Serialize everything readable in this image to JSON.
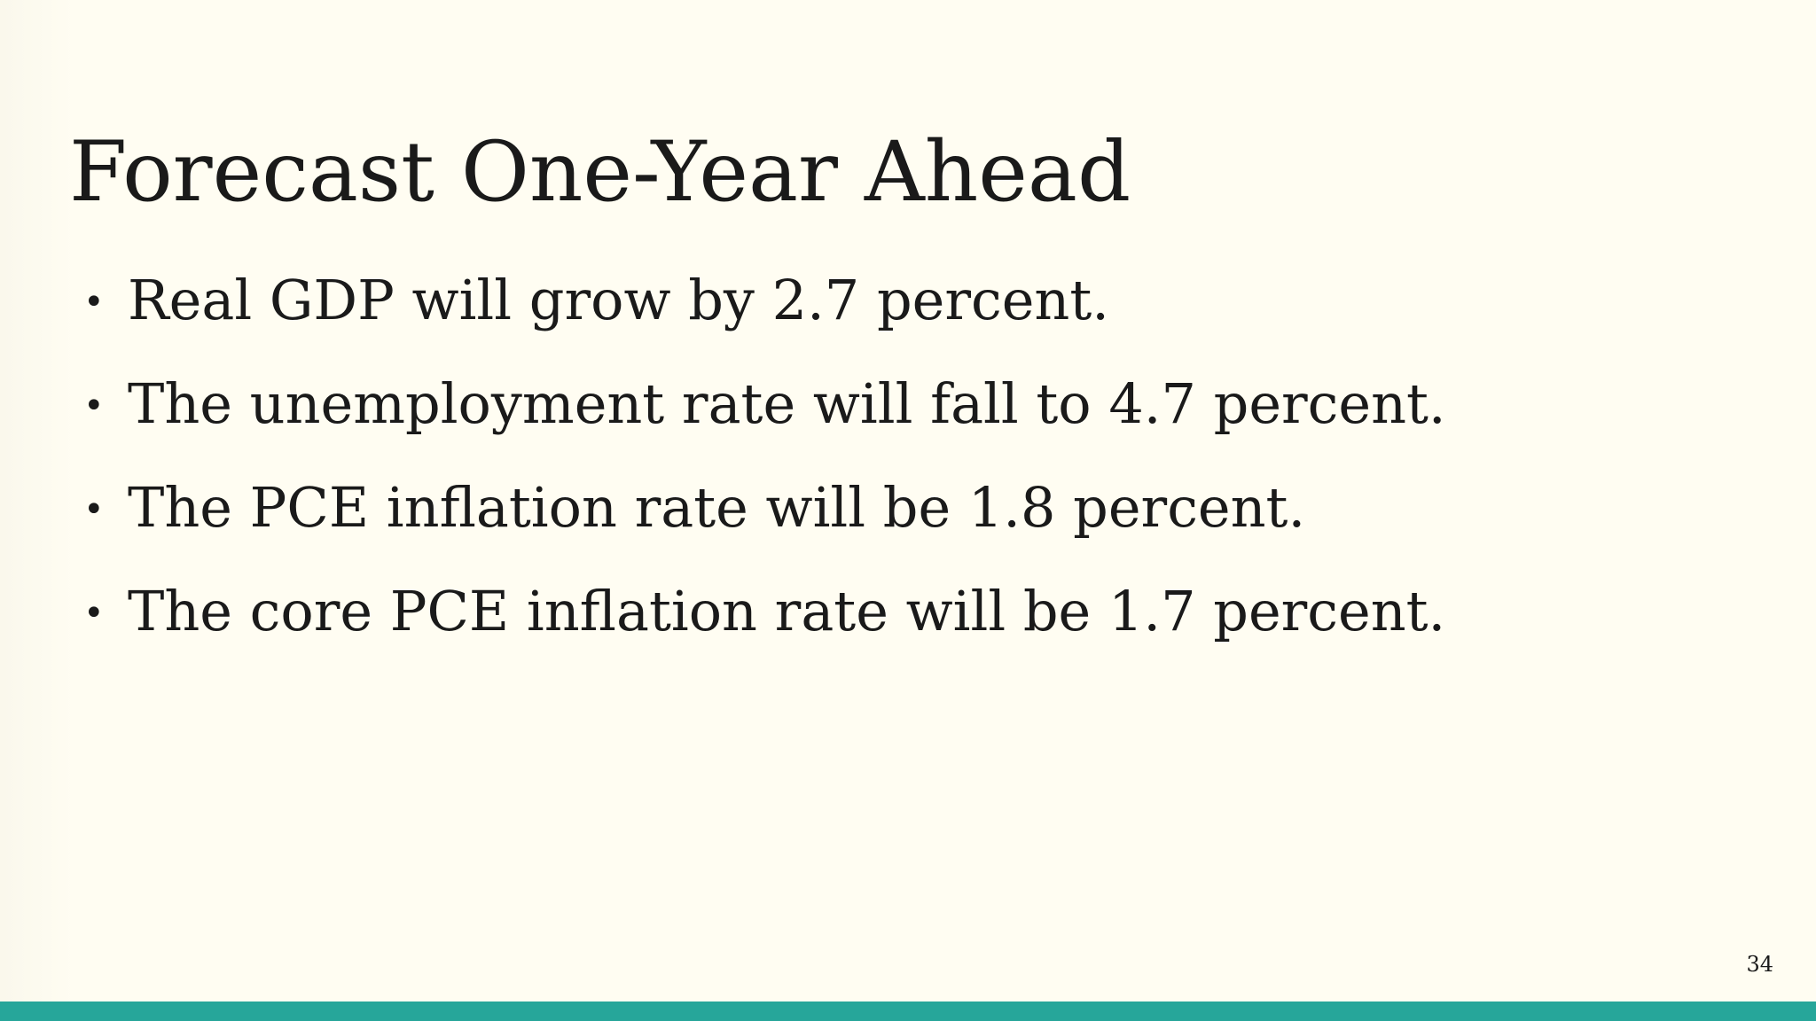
{
  "slide": {
    "title": "Forecast One-Year Ahead",
    "bullet_marker": "•",
    "bullets": [
      "Real GDP will grow by 2.7 percent.",
      "The unemployment rate will fall to 4.7 percent.",
      "The PCE inflation rate will be 1.8 percent.",
      "The core PCE inflation rate will be 1.7 percent."
    ],
    "page_number": "34"
  },
  "colors": {
    "background": "#fffdf2",
    "text": "#1a1a1a",
    "footer_bar": "#26a69a"
  }
}
